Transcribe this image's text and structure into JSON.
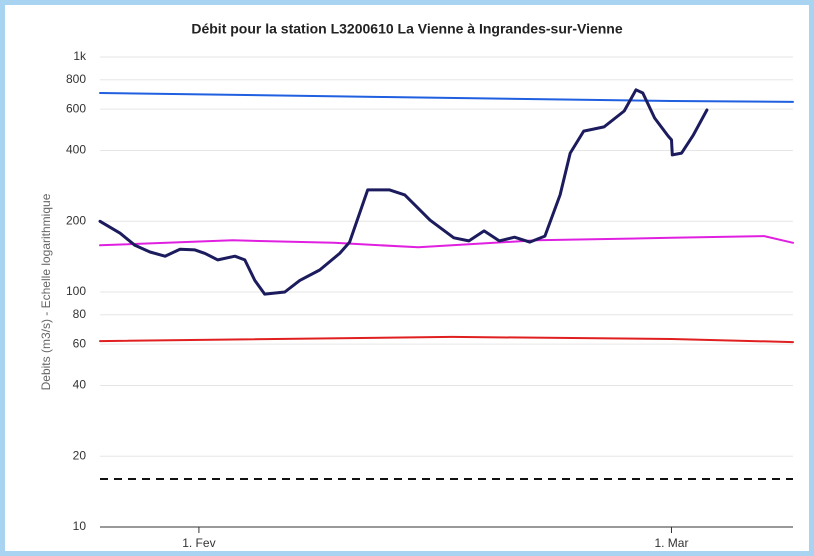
{
  "chart_data": {
    "type": "line",
    "title": "Débit pour la station L3200610 La Vienne à Ingrandes-sur-Vienne",
    "y_label": "Debits (m3/s) - Echelle logarithmique",
    "y_scale": "log",
    "grid": true,
    "xlim": [
      -5.86,
      35.2
    ],
    "xticks": [
      {
        "value": 0,
        "label": "1. Fev"
      },
      {
        "value": 28,
        "label": "1. Mar"
      }
    ],
    "ylim": [
      10,
      1000
    ],
    "yticks": [
      10,
      20,
      40,
      60,
      80,
      100,
      200,
      400,
      600,
      800,
      {
        "value": 1000,
        "label": "1k"
      }
    ],
    "series": [
      {
        "color": "#1f5fe0",
        "width": 2,
        "dashed": false,
        "x": [
          -5.86,
          11,
          28,
          35.2
        ],
        "values": [
          703,
          676,
          650,
          644
        ]
      },
      {
        "color": "#e020e0",
        "width": 2,
        "dashed": false,
        "x": [
          -5.86,
          2,
          8,
          13,
          20,
          28,
          33.5,
          35.2
        ],
        "values": [
          158,
          166,
          162,
          155,
          166,
          170,
          173,
          162
        ]
      },
      {
        "color": "#e02020",
        "width": 2,
        "dashed": false,
        "x": [
          -5.86,
          15,
          28,
          35.2
        ],
        "values": [
          61.8,
          64.4,
          63.1,
          61.2
        ]
      },
      {
        "color": "#111111",
        "width": 2,
        "dashed": true,
        "x": [
          -5.86,
          35.2
        ],
        "values": [
          16,
          16
        ]
      },
      {
        "color": "#1b1b5e",
        "width": 3,
        "dashed": false,
        "x": [
          -5.86,
          -4.67,
          -3.79,
          -2.9,
          -2.01,
          -1.12,
          -0.24,
          0.36,
          1.12,
          2.13,
          2.72,
          3.31,
          3.9,
          5.09,
          5.98,
          7.16,
          8.34,
          8.93,
          10.0,
          11.3,
          12.2,
          13.7,
          15.1,
          16.0,
          16.9,
          17.8,
          18.7,
          19.6,
          20.5,
          21.4,
          22.0,
          22.8,
          24.0,
          25.2,
          25.9,
          26.3,
          27.0,
          27.8,
          28.0,
          28.05,
          28.6,
          29.3,
          30.1
        ],
        "values": [
          200,
          178,
          158,
          148,
          142,
          152,
          151,
          146,
          137,
          142,
          137,
          112,
          98,
          100,
          112,
          124,
          146,
          163,
          272,
          272,
          259,
          202,
          170,
          165,
          182,
          165,
          171,
          163,
          173,
          259,
          390,
          484,
          504,
          589,
          725,
          703,
          550,
          461,
          444,
          383,
          390,
          466,
          595
        ]
      }
    ]
  }
}
